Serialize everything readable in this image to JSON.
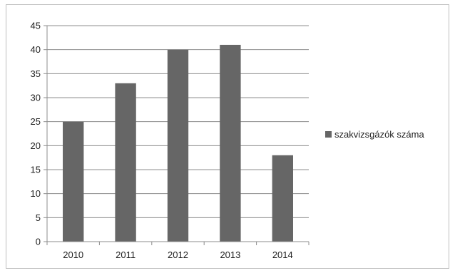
{
  "chart_data": {
    "type": "bar",
    "categories": [
      "2010",
      "2011",
      "2012",
      "2013",
      "2014"
    ],
    "series": [
      {
        "name": "szakvizsgázók száma",
        "values": [
          25,
          33,
          40,
          41,
          18
        ]
      }
    ],
    "ylim": [
      0,
      45
    ],
    "yticks": [
      0,
      5,
      10,
      15,
      20,
      25,
      30,
      35,
      40,
      45
    ],
    "grid": true,
    "legend": "right",
    "colors": {
      "bar": "#666666",
      "grid": "#8c8c8c",
      "axis": "#8c8c8c"
    }
  }
}
